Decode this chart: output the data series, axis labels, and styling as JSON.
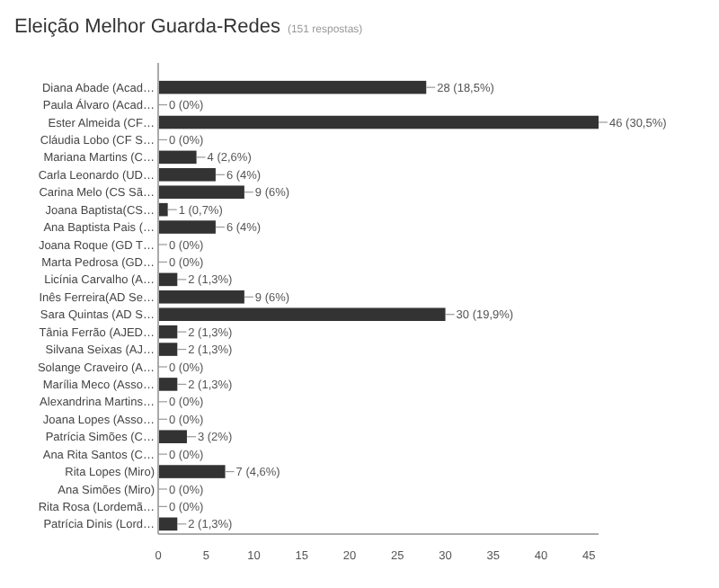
{
  "chart_data": {
    "type": "bar",
    "orientation": "horizontal",
    "title": "Eleição Melhor Guarda-Redes",
    "subtitle": "(151 respostas)",
    "categories": [
      "Diana Abade (Acad…",
      "Paula Álvaro (Acad…",
      "Ester Almeida (CF…",
      "Cláudia Lobo (CF S…",
      "Mariana Martins (C…",
      "Carla Leonardo (UD…",
      "Carina Melo (CS Sã…",
      "Joana Baptista(CS…",
      "Ana Baptista Pais (…",
      "Joana Roque (GD T…",
      "Marta Pedrosa (GD…",
      "Licínia Carvalho (A…",
      "Inês Ferreira(AD Se…",
      "Sara Quintas (AD S…",
      "Tânia Ferrão (AJED…",
      "Silvana Seixas (AJ…",
      "Solange Craveiro (A…",
      "Marília Meco (Asso…",
      "Alexandrina Martins…",
      "Joana Lopes (Asso…",
      "Patrícia Simões (C…",
      "Ana Rita Santos (C…",
      "Rita Lopes (Miro)",
      "Ana Simões (Miro)",
      "Rita Rosa (Lordemã…",
      "Patrícia Dinis (Lord…"
    ],
    "values": [
      28,
      0,
      46,
      0,
      4,
      6,
      9,
      1,
      6,
      0,
      0,
      2,
      9,
      30,
      2,
      2,
      0,
      2,
      0,
      0,
      3,
      0,
      7,
      0,
      0,
      2
    ],
    "value_labels": [
      "28 (18,5%)",
      "0 (0%)",
      "46 (30,5%)",
      "0 (0%)",
      "4 (2,6%)",
      "6 (4%)",
      "9 (6%)",
      "1 (0,7%)",
      "6 (4%)",
      "0 (0%)",
      "0 (0%)",
      "2 (1,3%)",
      "9 (6%)",
      "30 (19,9%)",
      "2 (1,3%)",
      "2 (1,3%)",
      "0 (0%)",
      "2 (1,3%)",
      "0 (0%)",
      "0 (0%)",
      "3 (2%)",
      "0 (0%)",
      "7 (4,6%)",
      "0 (0%)",
      "0 (0%)",
      "2 (1,3%)"
    ],
    "color": "#333333",
    "xlim": [
      0,
      46
    ],
    "xticks": [
      0,
      5,
      10,
      15,
      20,
      25,
      30,
      35,
      40,
      45
    ],
    "grid": false
  }
}
